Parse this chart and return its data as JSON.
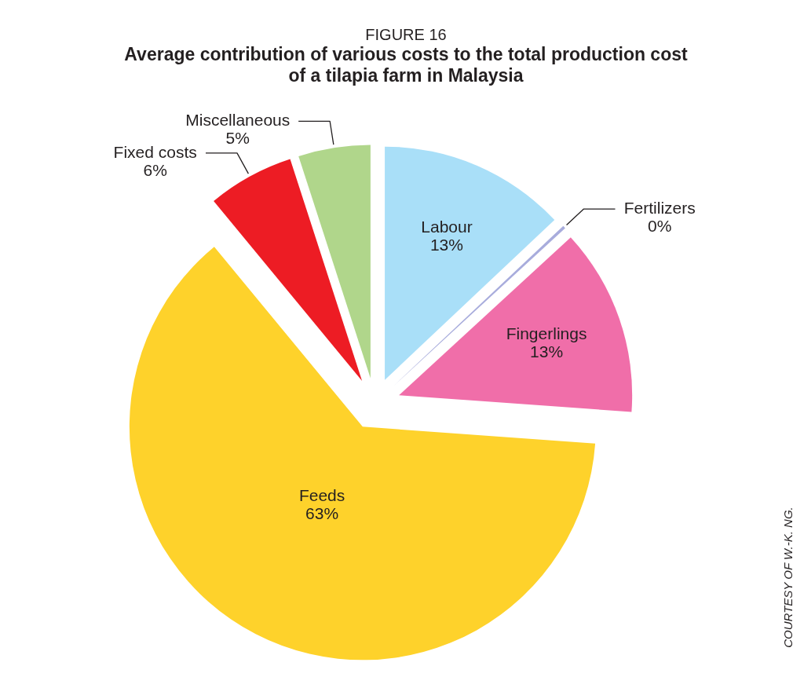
{
  "chart_data": {
    "type": "pie",
    "title": "FIGURE 16",
    "subtitle": "Average contribution of various costs to the total production cost of a tilapia farm in Malaysia",
    "categories": [
      "Labour",
      "Fertilizers",
      "Fingerlings",
      "Feeds",
      "Fixed costs",
      "Miscellaneous"
    ],
    "values": [
      13,
      0.2,
      13,
      63,
      6,
      5
    ],
    "colors": [
      "#a9dff8",
      "#a8acdc",
      "#f06ea9",
      "#fed22b",
      "#ed1c24",
      "#b0d68b"
    ],
    "value_labels": [
      "13%",
      "0%",
      "13%",
      "63%",
      "6%",
      "5%"
    ],
    "annotations": [
      "COURTESY OF W.-K. NG."
    ]
  }
}
